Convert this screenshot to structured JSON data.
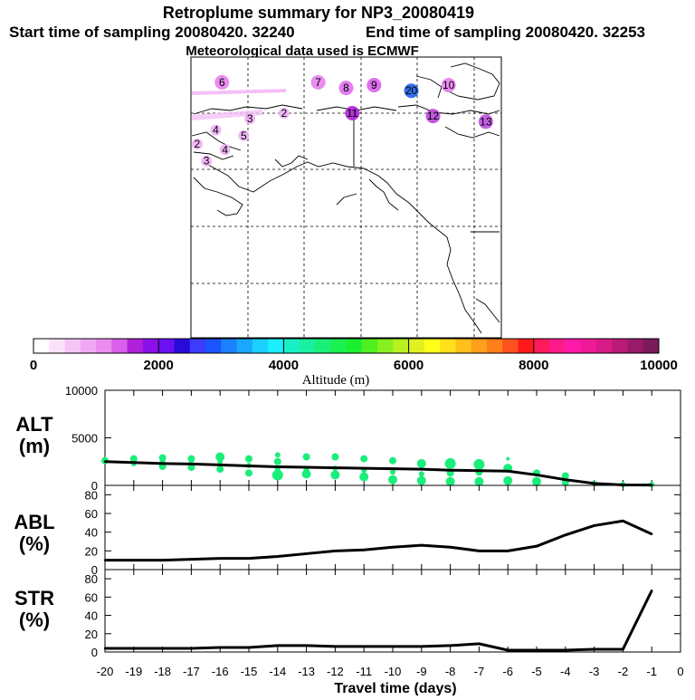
{
  "header": {
    "title": "Retroplume summary for NP3_20080419",
    "start_label": "Start time of sampling 20080420. 32240",
    "end_label": "End time of sampling 20080420. 32253",
    "met_label": "Meteorological data used is ECMWF"
  },
  "map": {
    "markers": [
      {
        "label": "6",
        "lon_frac": 0.1,
        "lat_frac": 0.09,
        "color": "#e880ef"
      },
      {
        "label": "7",
        "lon_frac": 0.41,
        "lat_frac": 0.09,
        "color": "#e880ef"
      },
      {
        "label": "8",
        "lon_frac": 0.5,
        "lat_frac": 0.11,
        "color": "#e070ec"
      },
      {
        "label": "9",
        "lon_frac": 0.59,
        "lat_frac": 0.1,
        "color": "#d860ea"
      },
      {
        "label": "10",
        "lon_frac": 0.83,
        "lat_frac": 0.1,
        "color": "#e880ef"
      },
      {
        "label": "20",
        "lon_frac": 0.71,
        "lat_frac": 0.12,
        "color": "#1f5fe8"
      },
      {
        "label": "11",
        "lon_frac": 0.52,
        "lat_frac": 0.2,
        "color": "#b020d8"
      },
      {
        "label": "12",
        "lon_frac": 0.78,
        "lat_frac": 0.21,
        "color": "#b848dc"
      },
      {
        "label": "13",
        "lon_frac": 0.95,
        "lat_frac": 0.23,
        "color": "#c050e0"
      },
      {
        "label": "2",
        "lon_frac": 0.3,
        "lat_frac": 0.2,
        "color": "#f0b0f4"
      },
      {
        "label": "3",
        "lon_frac": 0.19,
        "lat_frac": 0.22,
        "color": "#f0b0f4"
      },
      {
        "label": "4",
        "lon_frac": 0.08,
        "lat_frac": 0.26,
        "color": "#f0b0f4"
      },
      {
        "label": "5",
        "lon_frac": 0.17,
        "lat_frac": 0.28,
        "color": "#f0b0f4"
      },
      {
        "label": "2",
        "lon_frac": 0.02,
        "lat_frac": 0.31,
        "color": "#f0b0f4"
      },
      {
        "label": "4",
        "lon_frac": 0.11,
        "lat_frac": 0.33,
        "color": "#f0b0f4"
      },
      {
        "label": "3",
        "lon_frac": 0.05,
        "lat_frac": 0.37,
        "color": "#f0b0f4"
      }
    ]
  },
  "colorbar": {
    "label": "Altitude (m)",
    "ticks": [
      "0",
      "2000",
      "4000",
      "6000",
      "8000",
      "10000"
    ],
    "colors": [
      "#ffffff",
      "#fbe2fb",
      "#f5c5f7",
      "#efa8f3",
      "#e98bef",
      "#d860ea",
      "#b020d8",
      "#8c10e8",
      "#6a10f2",
      "#2a0ad8",
      "#3c3cff",
      "#1a55ff",
      "#1a80ff",
      "#1aa8ff",
      "#1ad0ff",
      "#1aeeff",
      "#1af0c8",
      "#1af0a0",
      "#1af078",
      "#1af050",
      "#1af030",
      "#50f020",
      "#88f020",
      "#b8f020",
      "#e0f020",
      "#ffff1a",
      "#ffe01a",
      "#ffc01a",
      "#ffa01a",
      "#ff801a",
      "#ff5020",
      "#ff1a1a",
      "#ff1a5a",
      "#ff1a8a",
      "#ff1aa8",
      "#ee1a98",
      "#d81a88",
      "#b81a78",
      "#981a68",
      "#7a1a5a"
    ]
  },
  "panels": {
    "alt": {
      "label1": "ALT",
      "label2": "(m)"
    },
    "abl": {
      "label1": "ABL",
      "label2": "(%)"
    },
    "str": {
      "label1": "STR",
      "label2": "(%)"
    }
  },
  "xaxis": {
    "label": "Travel time (days)"
  },
  "chart_data": [
    {
      "type": "line",
      "name": "ALT",
      "ylabel": "ALT (m)",
      "ylim": [
        0,
        10000
      ],
      "yticks": [
        0,
        5000,
        10000
      ],
      "xlim": [
        -20,
        0
      ],
      "x": [
        -20,
        -19,
        -18,
        -17,
        -16,
        -15,
        -14,
        -13,
        -12,
        -11,
        -10,
        -9,
        -8,
        -7,
        -6,
        -5,
        -4,
        -3,
        -2,
        -1
      ],
      "values": [
        2500,
        2400,
        2300,
        2250,
        2150,
        2050,
        1950,
        1900,
        1850,
        1800,
        1750,
        1700,
        1600,
        1550,
        1500,
        1100,
        600,
        200,
        50,
        30
      ],
      "scatter_color": "#1aee7a",
      "scatter": [
        {
          "x": -20,
          "y": 2600,
          "r": 4
        },
        {
          "x": -19,
          "y": 2800,
          "r": 4
        },
        {
          "x": -19,
          "y": 2300,
          "r": 3
        },
        {
          "x": -18,
          "y": 2900,
          "r": 4
        },
        {
          "x": -18,
          "y": 2500,
          "r": 3
        },
        {
          "x": -18,
          "y": 2000,
          "r": 4
        },
        {
          "x": -17,
          "y": 2800,
          "r": 4
        },
        {
          "x": -17,
          "y": 2300,
          "r": 3
        },
        {
          "x": -17,
          "y": 1900,
          "r": 4
        },
        {
          "x": -16,
          "y": 3000,
          "r": 5
        },
        {
          "x": -16,
          "y": 2500,
          "r": 3
        },
        {
          "x": -16,
          "y": 1700,
          "r": 4
        },
        {
          "x": -15,
          "y": 2800,
          "r": 4
        },
        {
          "x": -15,
          "y": 2100,
          "r": 3
        },
        {
          "x": -15,
          "y": 1300,
          "r": 4
        },
        {
          "x": -14,
          "y": 3200,
          "r": 3
        },
        {
          "x": -14,
          "y": 2500,
          "r": 4
        },
        {
          "x": -14,
          "y": 1800,
          "r": 3
        },
        {
          "x": -14,
          "y": 1100,
          "r": 6
        },
        {
          "x": -13,
          "y": 3000,
          "r": 4
        },
        {
          "x": -13,
          "y": 1700,
          "r": 3
        },
        {
          "x": -13,
          "y": 1200,
          "r": 5
        },
        {
          "x": -12,
          "y": 3000,
          "r": 4
        },
        {
          "x": -12,
          "y": 1800,
          "r": 3
        },
        {
          "x": -12,
          "y": 1100,
          "r": 5
        },
        {
          "x": -11,
          "y": 2800,
          "r": 4
        },
        {
          "x": -11,
          "y": 1600,
          "r": 3
        },
        {
          "x": -11,
          "y": 900,
          "r": 5
        },
        {
          "x": -10,
          "y": 2600,
          "r": 4
        },
        {
          "x": -10,
          "y": 1400,
          "r": 3
        },
        {
          "x": -10,
          "y": 600,
          "r": 5
        },
        {
          "x": -9,
          "y": 2300,
          "r": 5
        },
        {
          "x": -9,
          "y": 1200,
          "r": 3
        },
        {
          "x": -9,
          "y": 500,
          "r": 5
        },
        {
          "x": -8,
          "y": 2300,
          "r": 6
        },
        {
          "x": -8,
          "y": 1300,
          "r": 4
        },
        {
          "x": -8,
          "y": 400,
          "r": 5
        },
        {
          "x": -7,
          "y": 2200,
          "r": 6
        },
        {
          "x": -7,
          "y": 1400,
          "r": 4
        },
        {
          "x": -7,
          "y": 400,
          "r": 5
        },
        {
          "x": -6,
          "y": 2800,
          "r": 2
        },
        {
          "x": -6,
          "y": 1800,
          "r": 5
        },
        {
          "x": -6,
          "y": 500,
          "r": 5
        },
        {
          "x": -5,
          "y": 1300,
          "r": 4
        },
        {
          "x": -5,
          "y": 400,
          "r": 5
        },
        {
          "x": -4,
          "y": 1000,
          "r": 4
        },
        {
          "x": -4,
          "y": 300,
          "r": 4
        },
        {
          "x": -3,
          "y": 200,
          "r": 3
        },
        {
          "x": -2,
          "y": 100,
          "r": 3
        },
        {
          "x": -1,
          "y": 100,
          "r": 3
        }
      ]
    },
    {
      "type": "line",
      "name": "ABL",
      "ylabel": "ABL (%)",
      "ylim": [
        0,
        90
      ],
      "yticks": [
        0,
        20,
        40,
        60,
        80
      ],
      "xlim": [
        -20,
        0
      ],
      "x": [
        -20,
        -19,
        -18,
        -17,
        -16,
        -15,
        -14,
        -13,
        -12,
        -11,
        -10,
        -9,
        -8,
        -7,
        -6,
        -5,
        -4,
        -3,
        -2,
        -1
      ],
      "values": [
        10,
        10,
        10,
        11,
        12,
        12,
        14,
        17,
        20,
        21,
        24,
        26,
        24,
        20,
        20,
        25,
        37,
        47,
        52,
        38
      ]
    },
    {
      "type": "line",
      "name": "STR",
      "ylabel": "STR (%)",
      "ylim": [
        0,
        90
      ],
      "yticks": [
        0,
        20,
        40,
        60,
        80
      ],
      "xlim": [
        -20,
        0
      ],
      "x": [
        -20,
        -19,
        -18,
        -17,
        -16,
        -15,
        -14,
        -13,
        -12,
        -11,
        -10,
        -9,
        -8,
        -7,
        -6,
        -5,
        -4,
        -3,
        -2,
        -1
      ],
      "values": [
        4,
        4,
        4,
        4,
        5,
        5,
        7,
        7,
        6,
        6,
        6,
        6,
        7,
        9,
        2,
        2,
        2,
        3,
        3,
        67
      ]
    }
  ],
  "xticks": [
    "-20",
    "-19",
    "-18",
    "-17",
    "-16",
    "-15",
    "-14",
    "-13",
    "-12",
    "-11",
    "-10",
    "-9",
    "-8",
    "-7",
    "-6",
    "-5",
    "-4",
    "-3",
    "-2",
    "-1",
    "0"
  ]
}
